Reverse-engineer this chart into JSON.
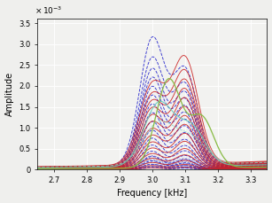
{
  "freq_min": 2.65,
  "freq_max": 3.35,
  "ylim": [
    0,
    0.0036
  ],
  "yticks": [
    0,
    0.0005,
    0.001,
    0.0015,
    0.002,
    0.0025,
    0.003,
    0.0035
  ],
  "ytick_labels": [
    "0",
    "0.5",
    "1",
    "1.5",
    "2",
    "2.5",
    "3",
    "3.5"
  ],
  "xticks": [
    2.7,
    2.8,
    2.9,
    3.0,
    3.1,
    3.2,
    3.3
  ],
  "xlabel": "Frequency [kHz]",
  "ylabel": "Amplitude",
  "background_color": "#f0f0ee",
  "grid_color": "#ffffff"
}
